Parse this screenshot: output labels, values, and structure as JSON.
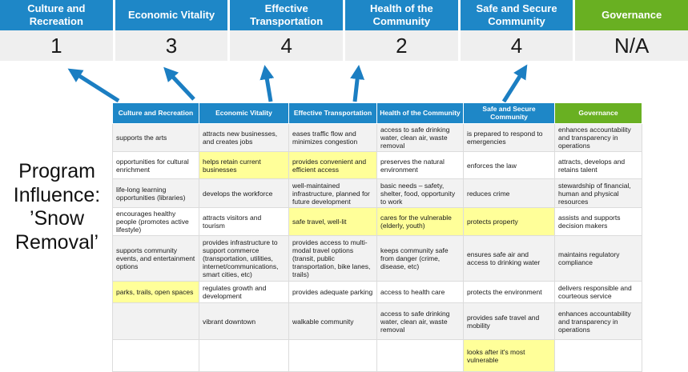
{
  "colors": {
    "header_blue": "#1e87c7",
    "header_green": "#69b022",
    "highlight_yellow": "#ffff99",
    "arrow_blue": "#1b7ec2",
    "row_alt_gray": "#f2f2f2",
    "score_row_gray": "#efefef"
  },
  "scoreboard": {
    "columns": [
      {
        "label": "Culture and Recreation",
        "score": "1",
        "color": "#1e87c7"
      },
      {
        "label": "Economic Vitality",
        "score": "3",
        "color": "#1e87c7"
      },
      {
        "label": "Effective Transportation",
        "score": "4",
        "color": "#1e87c7"
      },
      {
        "label": "Health of the Community",
        "score": "2",
        "color": "#1e87c7"
      },
      {
        "label": "Safe and Secure Community",
        "score": "4",
        "color": "#1e87c7"
      },
      {
        "label": "Governance",
        "score": "N/A",
        "color": "#69b022"
      }
    ]
  },
  "program_label": {
    "lines": [
      "Program",
      "Influence:",
      "’Snow",
      "Removal’"
    ]
  },
  "matrix": {
    "headers": [
      {
        "label": "Culture and Recreation",
        "color": "#1e87c7"
      },
      {
        "label": "Economic Vitality",
        "color": "#1e87c7"
      },
      {
        "label": "Effective Transportation",
        "color": "#1e87c7"
      },
      {
        "label": "Health of the Community",
        "color": "#1e87c7"
      },
      {
        "label": "Safe and Secure Community",
        "color": "#1e87c7"
      },
      {
        "label": "Governance",
        "color": "#69b022"
      }
    ],
    "rows": [
      {
        "cells": [
          {
            "text": "supports the arts",
            "highlight": false
          },
          {
            "text": "attracts new businesses, and creates jobs",
            "highlight": false
          },
          {
            "text": "eases traffic flow and minimizes congestion",
            "highlight": true
          },
          {
            "text": "access to safe drinking water, clean air, waste removal",
            "highlight": false
          },
          {
            "text": "is prepared to respond to emergencies",
            "highlight": true
          },
          {
            "text": "enhances accountability and transparency in operations",
            "highlight": false
          }
        ]
      },
      {
        "cells": [
          {
            "text": "opportunities for cultural enrichment",
            "highlight": false
          },
          {
            "text": "helps retain current businesses",
            "highlight": true
          },
          {
            "text": "provides convenient and efficient access",
            "highlight": true
          },
          {
            "text": "preserves the natural environment",
            "highlight": false
          },
          {
            "text": "enforces the law",
            "highlight": false
          },
          {
            "text": "attracts, develops and retains talent",
            "highlight": false
          }
        ]
      },
      {
        "cells": [
          {
            "text": "life-long learning opportunities (libraries)",
            "highlight": false
          },
          {
            "text": "develops the workforce",
            "highlight": false
          },
          {
            "text": "well-maintained infrastructure, planned for future development",
            "highlight": false
          },
          {
            "text": "basic needs – safety, shelter, food, opportunity to work",
            "highlight": true
          },
          {
            "text": "reduces crime",
            "highlight": false
          },
          {
            "text": "stewardship of financial, human and physical resources",
            "highlight": false
          }
        ]
      },
      {
        "cells": [
          {
            "text": "encourages healthy people (promotes active lifestyle)",
            "highlight": false
          },
          {
            "text": "attracts visitors and tourism",
            "highlight": false
          },
          {
            "text": "safe travel, well-lit",
            "highlight": true
          },
          {
            "text": "cares for the vulnerable (elderly, youth)",
            "highlight": true
          },
          {
            "text": "protects property",
            "highlight": true
          },
          {
            "text": "assists and supports decision makers",
            "highlight": false
          }
        ]
      },
      {
        "cells": [
          {
            "text": "supports community events, and entertainment options",
            "highlight": false
          },
          {
            "text": "provides infrastructure to support commerce (transportation, utilities, internet/communications, smart cities, etc)",
            "highlight": true
          },
          {
            "text": "provides access to multi-modal travel options (transit, public transportation, bike lanes, trails)",
            "highlight": true
          },
          {
            "text": "keeps community safe from danger (crime, disease, etc)",
            "highlight": true
          },
          {
            "text": "ensures safe air and access to drinking water",
            "highlight": false
          },
          {
            "text": "maintains regulatory compliance",
            "highlight": false
          }
        ]
      },
      {
        "cells": [
          {
            "text": "parks, trails, open spaces",
            "highlight": true
          },
          {
            "text": "regulates growth and development",
            "highlight": false
          },
          {
            "text": "provides adequate parking",
            "highlight": false
          },
          {
            "text": "access to health care",
            "highlight": false
          },
          {
            "text": "protects the environment",
            "highlight": false
          },
          {
            "text": "delivers responsible and courteous service",
            "highlight": false
          }
        ]
      },
      {
        "cells": [
          {
            "text": "",
            "highlight": false
          },
          {
            "text": "vibrant downtown",
            "highlight": false
          },
          {
            "text": "walkable community",
            "highlight": false
          },
          {
            "text": "access to safe drinking water, clean air, waste removal",
            "highlight": false
          },
          {
            "text": "provides safe travel and mobility",
            "highlight": true
          },
          {
            "text": "enhances accountability and transparency in operations",
            "highlight": false
          }
        ]
      },
      {
        "cells": [
          {
            "text": "",
            "highlight": false
          },
          {
            "text": "",
            "highlight": false
          },
          {
            "text": "",
            "highlight": false
          },
          {
            "text": "",
            "highlight": false
          },
          {
            "text": "looks after it's most vulnerable",
            "highlight": true
          },
          {
            "text": "",
            "highlight": false
          }
        ]
      }
    ]
  }
}
